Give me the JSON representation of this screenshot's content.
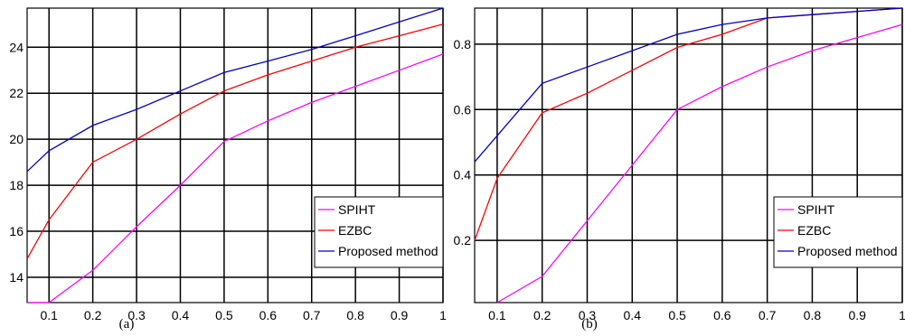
{
  "chart_data": [
    {
      "type": "line",
      "caption": "(a)",
      "x": [
        0.05,
        0.1,
        0.2,
        0.3,
        0.4,
        0.5,
        0.6,
        0.7,
        0.8,
        0.9,
        1
      ],
      "xlim": [
        0.05,
        1
      ],
      "ylim": [
        12.9,
        25.7
      ],
      "xticks": [
        "0.1",
        "0.2",
        "0.3",
        "0.4",
        "0.5",
        "0.6",
        "0.7",
        "0.8",
        "0.9",
        "1"
      ],
      "yticks": [
        "14",
        "16",
        "18",
        "20",
        "22",
        "24"
      ],
      "grid": true,
      "legend_position": "bottom-right",
      "series": [
        {
          "name": "SPIHT",
          "color": "#ff00ff",
          "values": [
            12.9,
            12.9,
            14.3,
            16.2,
            18.0,
            19.9,
            20.8,
            21.6,
            22.3,
            23.0,
            23.7
          ]
        },
        {
          "name": "EZBC",
          "color": "#ff0000",
          "values": [
            14.8,
            16.5,
            19.0,
            20.0,
            21.1,
            22.1,
            22.8,
            23.4,
            24.0,
            24.5,
            25.0
          ]
        },
        {
          "name": "Proposed method",
          "color": "#0000cc",
          "values": [
            18.6,
            19.5,
            20.6,
            21.3,
            22.1,
            22.9,
            23.4,
            23.9,
            24.5,
            25.1,
            25.7
          ]
        }
      ]
    },
    {
      "type": "line",
      "caption": "(b)",
      "x": [
        0.05,
        0.1,
        0.2,
        0.3,
        0.4,
        0.5,
        0.6,
        0.7,
        0.8,
        0.9,
        1
      ],
      "xlim": [
        0.05,
        1
      ],
      "ylim": [
        0.01,
        0.91
      ],
      "xticks": [
        "0.1",
        "0.2",
        "0.3",
        "0.4",
        "0.5",
        "0.6",
        "0.7",
        "0.8",
        "0.9",
        "1"
      ],
      "yticks": [
        "0.2",
        "0.4",
        "0.6",
        "0.8"
      ],
      "grid": true,
      "legend_position": "bottom-right",
      "series": [
        {
          "name": "SPIHT",
          "color": "#ff00ff",
          "values": [
            null,
            0.01,
            0.09,
            0.26,
            0.43,
            0.6,
            0.67,
            0.73,
            0.78,
            0.82,
            0.86
          ]
        },
        {
          "name": "EZBC",
          "color": "#ff0000",
          "values": [
            0.2,
            0.39,
            0.59,
            0.65,
            0.72,
            0.79,
            0.83,
            0.88,
            0.89,
            0.9,
            0.91
          ]
        },
        {
          "name": "Proposed method",
          "color": "#0000cc",
          "values": [
            0.44,
            0.52,
            0.68,
            0.73,
            0.78,
            0.83,
            0.86,
            0.88,
            0.89,
            0.9,
            0.91
          ]
        }
      ]
    }
  ]
}
